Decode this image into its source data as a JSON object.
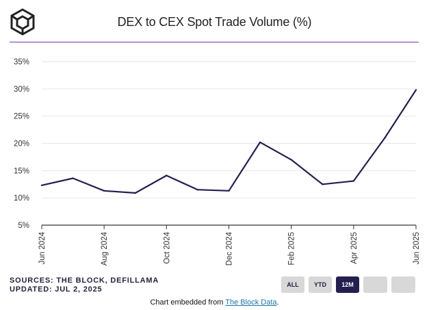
{
  "title": "DEX to CEX Spot Trade Volume (%)",
  "sources_line": "SOURCES: THE BLOCK, DEFILLAMA",
  "updated_line": "UPDATED: JUL 2, 2025",
  "buttons": [
    {
      "label": "ALL",
      "active": false
    },
    {
      "label": "YTD",
      "active": false
    },
    {
      "label": "12M",
      "active": true
    },
    {
      "label": "",
      "active": false
    },
    {
      "label": "",
      "active": false
    }
  ],
  "embed": {
    "prefix": "Chart embedded from ",
    "link": "The Block Data",
    "suffix": "."
  },
  "colors": {
    "line": "#231f4f",
    "accent_rule": "#7b2fbe",
    "grid": "#e6e6e6",
    "baseline": "#333333"
  },
  "chart_data": {
    "type": "line",
    "title": "DEX to CEX Spot Trade Volume (%)",
    "xlabel": "",
    "ylabel": "",
    "ylim": [
      5,
      35
    ],
    "y_ticks": [
      5,
      10,
      15,
      20,
      25,
      30,
      35
    ],
    "y_tick_labels": [
      "5%",
      "10%",
      "15%",
      "20%",
      "25%",
      "30%",
      "35%"
    ],
    "x_tick_labels": [
      "Jun 2024",
      "Aug 2024",
      "Oct 2024",
      "Dec 2024",
      "Feb 2025",
      "Apr 2025",
      "Jun 2025"
    ],
    "grid": true,
    "series": [
      {
        "x": [
          "2024-06",
          "2024-07",
          "2024-08",
          "2024-09",
          "2024-10",
          "2024-11",
          "2024-12",
          "2025-01",
          "2025-02",
          "2025-03",
          "2025-04",
          "2025-05",
          "2025-06"
        ],
        "values": [
          12.3,
          13.6,
          11.3,
          10.9,
          14.1,
          11.5,
          11.3,
          20.2,
          17.0,
          12.5,
          13.1,
          21.0,
          29.8
        ]
      }
    ]
  }
}
